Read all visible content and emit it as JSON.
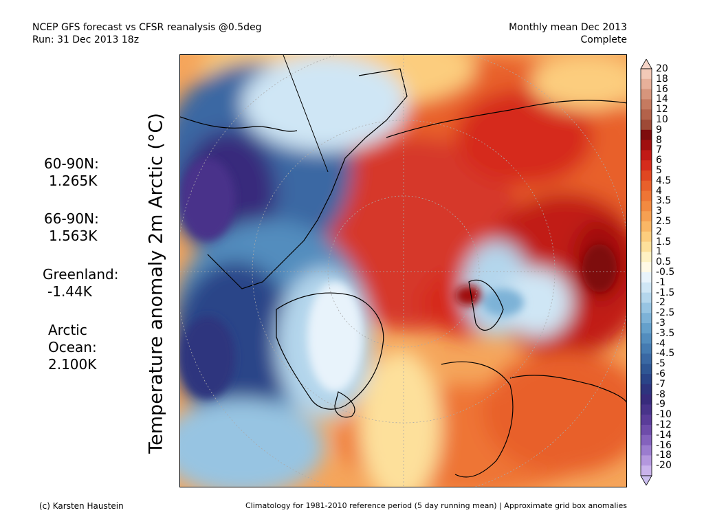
{
  "header": {
    "line1_left": "NCEP GFS forecast vs CFSR reanalysis @0.5deg",
    "line2_left": "Run: 31 Dec 2013 18z",
    "line1_right": "Monthly mean Dec 2013",
    "line2_right": "Complete"
  },
  "ylabel": "Temperature anomaly 2m Arctic (°C)",
  "stats": [
    {
      "label": "60-90N:",
      "value": "1.265K"
    },
    {
      "label": "66-90N:",
      "value": "1.563K"
    },
    {
      "label": "Greenland:",
      "value": "-1.44K"
    },
    {
      "label": "Arctic",
      "label2": "Ocean:",
      "value": "2.100K"
    }
  ],
  "colorbar": {
    "labels": [
      "20",
      "18",
      "16",
      "14",
      "12",
      "10",
      "9",
      "8",
      "7",
      "6",
      "5",
      "4.5",
      "4",
      "3.5",
      "3",
      "2.5",
      "2",
      "1.5",
      "1",
      "0.5",
      "-0.5",
      "-1",
      "-1.5",
      "-2",
      "-2.5",
      "-3",
      "-3.5",
      "-4",
      "-4.5",
      "-5",
      "-6",
      "-7",
      "-8",
      "-9",
      "-10",
      "-12",
      "-14",
      "-16",
      "-18",
      "-20"
    ],
    "colors": [
      "#f3c9b7",
      "#e7b09a",
      "#d6957c",
      "#c57a60",
      "#b3624a",
      "#9e4a36",
      "#7e0d0d",
      "#a01010",
      "#c11a16",
      "#d62c1c",
      "#e04722",
      "#e8602b",
      "#ee7535",
      "#f28a41",
      "#f6a052",
      "#f9b766",
      "#fccd7e",
      "#fde09b",
      "#fef1c3",
      "#fff9e6",
      "#e8f3fb",
      "#cfe6f5",
      "#b4d6ec",
      "#97c4e2",
      "#7db2d7",
      "#65a0cb",
      "#538dbe",
      "#457bb1",
      "#3a68a3",
      "#2f5694",
      "#2a4488",
      "#2e347e",
      "#382b7c",
      "#48338a",
      "#5a3c99",
      "#6e4caa",
      "#8462bd",
      "#9b7ccf",
      "#b497de",
      "#cab3ec"
    ],
    "low_cap": "#ccbff0",
    "high_cap": "#f6d5c8"
  },
  "footer": {
    "left": "(c) Karsten Haustein",
    "right": "Climatology for 1981-2010 reference period (5 day running mean) | Approximate grid box anomalies"
  }
}
